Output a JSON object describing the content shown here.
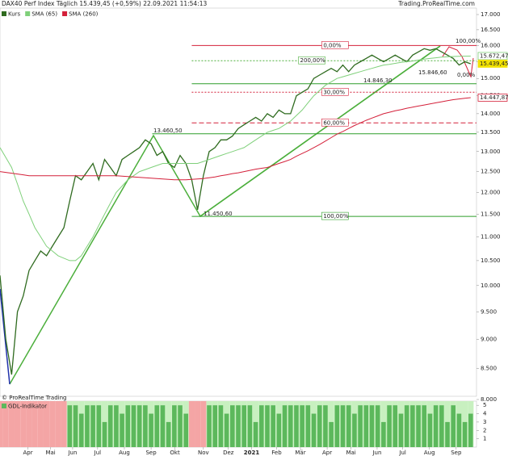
{
  "header": {
    "title": "DAX40 Perf Index Täglich 15.439,45 (+0,59%) 22.09.2021 11:54:13",
    "source": "Trading.ProRealTime.com",
    "copyright": "© ProRealTime Trading"
  },
  "chart_data": {
    "type": "line",
    "log_scale": true,
    "x": [
      0,
      1,
      2,
      3,
      4,
      5,
      6,
      7,
      8,
      9,
      10,
      11,
      12,
      13,
      14,
      15,
      16,
      17,
      18,
      19,
      20,
      21,
      22,
      23,
      24,
      25,
      26,
      27,
      28,
      29,
      30,
      31,
      32,
      33,
      34,
      35,
      36,
      37,
      38,
      39,
      40,
      41,
      42,
      43,
      44,
      45,
      46,
      47,
      48,
      49,
      50,
      51,
      52,
      53,
      54,
      55,
      56,
      57,
      58,
      59,
      60,
      61,
      62,
      63,
      64,
      65,
      66,
      67,
      68,
      69,
      70,
      71,
      72,
      73,
      74,
      75,
      76,
      77,
      78,
      79,
      80,
      81
    ],
    "xlim": [
      0,
      82
    ],
    "xticks": [
      {
        "value": 4.8,
        "label": "Apr"
      },
      {
        "value": 8.7,
        "label": "Mai"
      },
      {
        "value": 12.5,
        "label": "Jun"
      },
      {
        "value": 16.8,
        "label": "Jul"
      },
      {
        "value": 21.4,
        "label": "Aug"
      },
      {
        "value": 26,
        "label": "Sep"
      },
      {
        "value": 30.1,
        "label": "Okt"
      },
      {
        "value": 35,
        "label": "Nov"
      },
      {
        "value": 39.3,
        "label": "Dez"
      },
      {
        "value": 43.3,
        "label": "2021"
      },
      {
        "value": 47.6,
        "label": "Feb"
      },
      {
        "value": 51.7,
        "label": "Mär"
      },
      {
        "value": 56.3,
        "label": "Apr"
      },
      {
        "value": 60.4,
        "label": "Mai"
      },
      {
        "value": 64.9,
        "label": "Jun"
      },
      {
        "value": 69.3,
        "label": "Jul"
      },
      {
        "value": 73.9,
        "label": "Aug"
      },
      {
        "value": 78.5,
        "label": "Sep"
      }
    ],
    "ylim": [
      8000,
      17000
    ],
    "yticks": [
      {
        "value": 8000,
        "label": "8.000"
      },
      {
        "value": 8500,
        "label": "8.500"
      },
      {
        "value": 9000,
        "label": "9.000"
      },
      {
        "value": 9500,
        "label": "9.500"
      },
      {
        "value": 10000,
        "label": "10.000"
      },
      {
        "value": 10500,
        "label": "10.500"
      },
      {
        "value": 11000,
        "label": "11.000"
      },
      {
        "value": 11500,
        "label": "11.500"
      },
      {
        "value": 12000,
        "label": "12.000"
      },
      {
        "value": 12500,
        "label": "12.500"
      },
      {
        "value": 13000,
        "label": "13.000"
      },
      {
        "value": 13500,
        "label": "13.500"
      },
      {
        "value": 14000,
        "label": "14.000"
      },
      {
        "value": 14500,
        "label": "14.500"
      },
      {
        "value": 15000,
        "label": "15.000"
      },
      {
        "value": 15500,
        "label": "15.500"
      },
      {
        "value": 16000,
        "label": "16.000"
      },
      {
        "value": 16500,
        "label": "16.500"
      },
      {
        "value": 17000,
        "label": "17.000"
      }
    ],
    "series": [
      {
        "name": "Kurs",
        "color": "#2f6b1f",
        "values": [
          10200,
          9000,
          8400,
          9500,
          9800,
          10300,
          10500,
          10700,
          10600,
          10800,
          11000,
          11200,
          11800,
          12400,
          12300,
          12500,
          12700,
          12300,
          12800,
          12600,
          12400,
          12800,
          12900,
          13000,
          13100,
          13300,
          13200,
          12900,
          13000,
          12700,
          12600,
          12900,
          12700,
          12300,
          11600,
          12400,
          13000,
          13100,
          13300,
          13300,
          13400,
          13600,
          13700,
          13800,
          13900,
          13800,
          14000,
          13900,
          14100,
          14000,
          14000,
          14500,
          14600,
          14700,
          15000,
          15100,
          15200,
          15300,
          15200,
          15400,
          15200,
          15400,
          15500,
          15600,
          15700,
          15600,
          15500,
          15600,
          15700,
          15600,
          15500,
          15700,
          15800,
          15900,
          15850,
          15900,
          15800,
          15700,
          15600,
          15400,
          15500,
          15439
        ]
      },
      {
        "name": "SMA (65)",
        "color": "#7fd07a",
        "values": [
          13100,
          12850,
          12600,
          12200,
          11800,
          11500,
          11200,
          11000,
          10800,
          10700,
          10600,
          10550,
          10500,
          10500,
          10600,
          10800,
          11000,
          11250,
          11500,
          11750,
          12000,
          12150,
          12300,
          12400,
          12500,
          12550,
          12600,
          12650,
          12700,
          12700,
          12700,
          12700,
          12700,
          12700,
          12700,
          12750,
          12800,
          12850,
          12900,
          12950,
          13000,
          13050,
          13100,
          13200,
          13300,
          13400,
          13500,
          13550,
          13600,
          13700,
          13800,
          13950,
          14100,
          14300,
          14500,
          14650,
          14800,
          14900,
          15000,
          15050,
          15100,
          15150,
          15200,
          15250,
          15300,
          15350,
          15400,
          15420,
          15450,
          15480,
          15500,
          15520,
          15550,
          15580,
          15600,
          15620,
          15640,
          15650,
          15660,
          15665,
          15670,
          15672
        ]
      },
      {
        "name": "SMA (260)",
        "color": "#d4203a",
        "values": [
          12500,
          12480,
          12460,
          12440,
          12420,
          12400,
          12400,
          12400,
          12400,
          12400,
          12400,
          12400,
          12400,
          12400,
          12400,
          12400,
          12400,
          12400,
          12400,
          12400,
          12400,
          12390,
          12380,
          12370,
          12360,
          12350,
          12340,
          12330,
          12320,
          12310,
          12300,
          12300,
          12300,
          12310,
          12320,
          12330,
          12350,
          12370,
          12400,
          12420,
          12450,
          12470,
          12500,
          12530,
          12560,
          12580,
          12600,
          12650,
          12700,
          12750,
          12800,
          12880,
          12950,
          13020,
          13100,
          13180,
          13270,
          13360,
          13450,
          13520,
          13600,
          13680,
          13750,
          13820,
          13880,
          13940,
          14000,
          14040,
          14080,
          14110,
          14150,
          14180,
          14210,
          14240,
          14270,
          14300,
          14330,
          14360,
          14390,
          14410,
          14430,
          14447
        ]
      }
    ],
    "levels": [
      {
        "label": "0,00%",
        "value": 16000,
        "color": "#d4203a",
        "style": "solid"
      },
      {
        "label": "200,00%",
        "value": 15530,
        "color": "#4caf3c",
        "style": "dotted"
      },
      {
        "label": "30,00%",
        "value": 14600,
        "color": "#d4203a",
        "style": "dotted"
      },
      {
        "label": "60,00%",
        "value": 13750,
        "color": "#d4203a",
        "style": "dashed"
      },
      {
        "label": "100,00%",
        "value": 11450,
        "color": "#2f9e2a",
        "style": "solid"
      }
    ],
    "annotations": [
      "13.460,50",
      "11.450,60",
      "14.846,30",
      "15.846,60",
      "100,00%",
      "0,00%"
    ],
    "last_values": [
      {
        "label": "15.672,47",
        "value": 15672.47,
        "color": "#7fd07a"
      },
      {
        "label": "15.439,45",
        "value": 15439.45,
        "color": "#f2e200"
      },
      {
        "label": "14.447,87",
        "value": 14447.87,
        "color": "#d4203a"
      }
    ]
  },
  "indicator": {
    "name": "GDL-Indikator",
    "color": "#5cb85c",
    "ylim": [
      0,
      5.5
    ],
    "yticks": [
      1,
      2,
      3,
      4,
      5
    ],
    "values": [
      0,
      0,
      0,
      0,
      0,
      0,
      0,
      0,
      0,
      0,
      0,
      0,
      5,
      5,
      4,
      5,
      5,
      5,
      3,
      5,
      5,
      4,
      5,
      5,
      5,
      5,
      4,
      5,
      5,
      3,
      5,
      5,
      4,
      0,
      0,
      0,
      5,
      5,
      5,
      4,
      5,
      5,
      5,
      5,
      3,
      5,
      5,
      5,
      4,
      5,
      5,
      5,
      5,
      5,
      4,
      5,
      5,
      3,
      5,
      5,
      5,
      4,
      5,
      5,
      5,
      5,
      3,
      5,
      5,
      4,
      5,
      5,
      5,
      5,
      4,
      5,
      5,
      3,
      5,
      4,
      3,
      4
    ]
  }
}
